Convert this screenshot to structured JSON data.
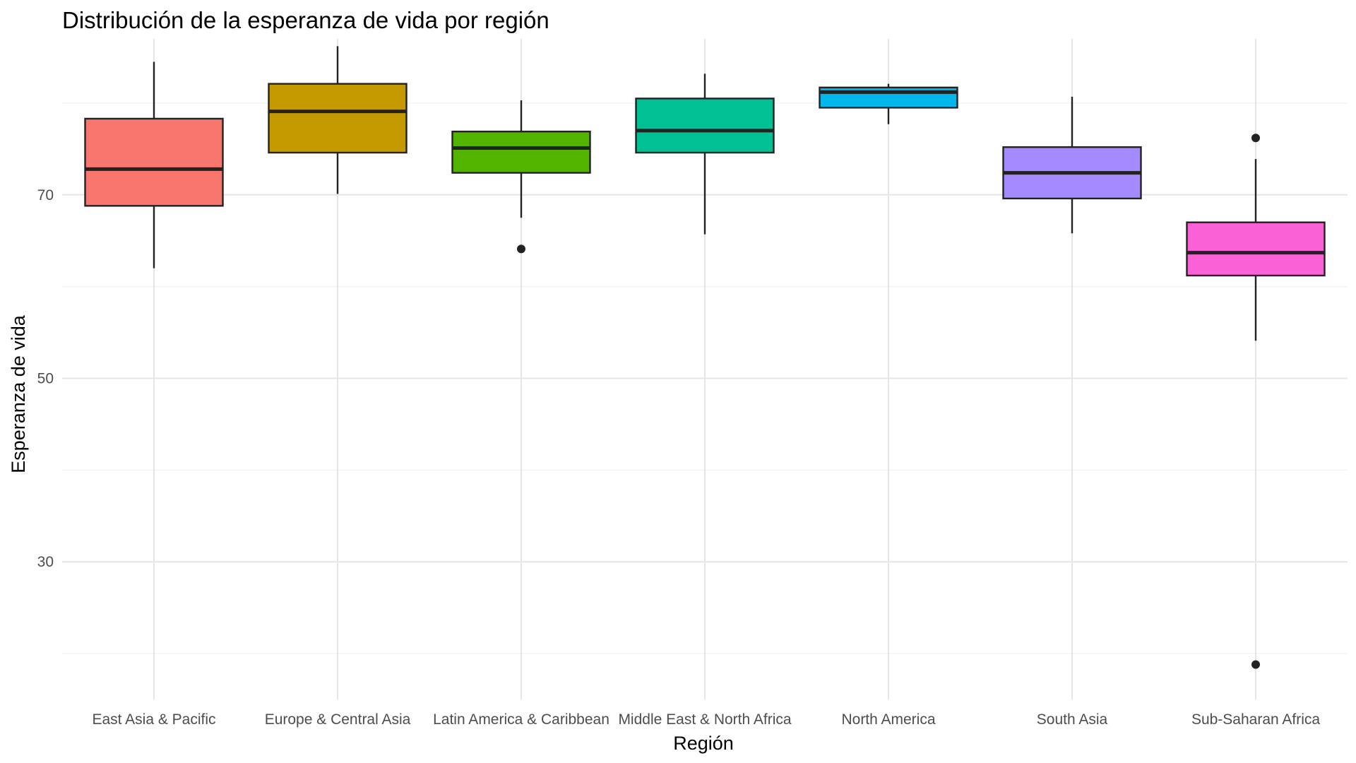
{
  "chart_data": {
    "type": "boxplot",
    "title": "Distribución de la esperanza de vida por región",
    "xlabel": "Región",
    "ylabel": "Esperanza de vida",
    "ylim": [
      15,
      87
    ],
    "yticks": [
      30,
      50,
      70
    ],
    "grid": true,
    "legend": "none",
    "categories": [
      "East Asia & Pacific",
      "Europe & Central Asia",
      "Latin America & Caribbean",
      "Middle East & North Africa",
      "North America",
      "South Asia",
      "Sub-Saharan Africa"
    ],
    "colors": [
      "#F8766D",
      "#C49A00",
      "#53B400",
      "#00C094",
      "#00B6EB",
      "#A58AFF",
      "#FB61D7"
    ],
    "series": [
      {
        "category": "East Asia & Pacific",
        "whisker_low": 62.0,
        "q1": 68.8,
        "median": 72.8,
        "q3": 78.3,
        "whisker_high": 84.5,
        "outliers": []
      },
      {
        "category": "Europe & Central Asia",
        "whisker_low": 70.1,
        "q1": 74.6,
        "median": 79.1,
        "q3": 82.1,
        "whisker_high": 86.2,
        "outliers": []
      },
      {
        "category": "Latin America & Caribbean",
        "whisker_low": 67.5,
        "q1": 72.4,
        "median": 75.1,
        "q3": 76.9,
        "whisker_high": 80.3,
        "outliers": [
          64.1
        ]
      },
      {
        "category": "Middle East & North Africa",
        "whisker_low": 65.7,
        "q1": 74.6,
        "median": 77.0,
        "q3": 80.5,
        "whisker_high": 83.2,
        "outliers": []
      },
      {
        "category": "North America",
        "whisker_low": 77.7,
        "q1": 79.5,
        "median": 81.2,
        "q3": 81.7,
        "whisker_high": 82.1,
        "outliers": []
      },
      {
        "category": "South Asia",
        "whisker_low": 65.8,
        "q1": 69.6,
        "median": 72.4,
        "q3": 75.2,
        "whisker_high": 80.7,
        "outliers": []
      },
      {
        "category": "Sub-Saharan Africa",
        "whisker_low": 54.1,
        "q1": 61.2,
        "median": 63.7,
        "q3": 67.0,
        "whisker_high": 73.9,
        "outliers": [
          76.2,
          18.8
        ]
      }
    ]
  }
}
